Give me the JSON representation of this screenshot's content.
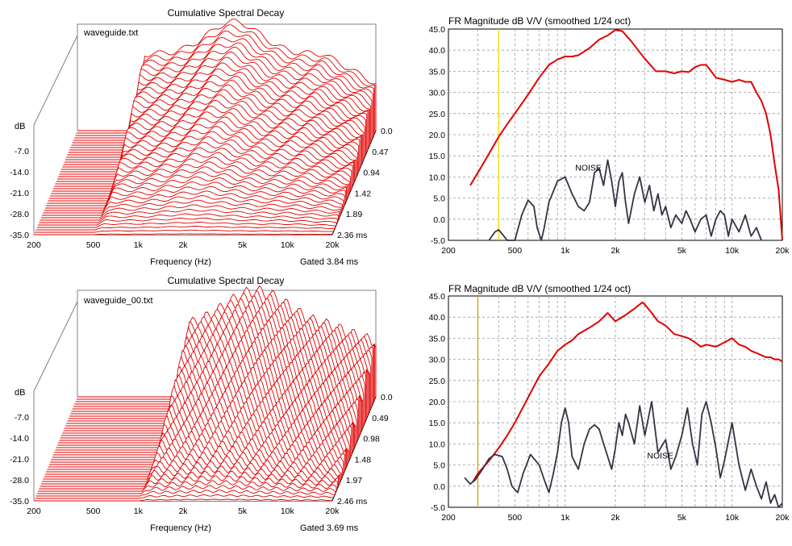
{
  "csd_top": {
    "title": "Cumulative Spectral Decay",
    "file_label": "waveguide.txt",
    "ylabel": "dB",
    "xlabel": "Frequency (Hz)",
    "gated": "Gated 3.84 ms",
    "y_ticks": [
      "-7.0",
      "-14.0",
      "-21.0",
      "-28.0",
      "-35.0"
    ],
    "x_ticks": [
      "200",
      "500",
      "1k",
      "2k",
      "5k",
      "10k",
      "20k"
    ],
    "x_tick_values": [
      200,
      500,
      1000,
      2000,
      5000,
      10000,
      20000
    ],
    "time_ticks": [
      "0.0",
      "0.47",
      "0.94",
      "1.42",
      "1.89",
      "2.36 ms"
    ],
    "color": "#e00000",
    "slices": 44,
    "start_hz": 500
  },
  "csd_bottom": {
    "title": "Cumulative Spectral Decay",
    "file_label": "waveguide_00.txt",
    "ylabel": "dB",
    "xlabel": "Frequency (Hz)",
    "gated": "Gated 3.69 ms",
    "y_ticks": [
      "-7.0",
      "-14.0",
      "-21.0",
      "-28.0",
      "-35.0"
    ],
    "x_ticks": [
      "200",
      "500",
      "1k",
      "2k",
      "5k",
      "10k",
      "20k"
    ],
    "x_tick_values": [
      200,
      500,
      1000,
      2000,
      5000,
      10000,
      20000
    ],
    "time_ticks": [
      "0.0",
      "0.49",
      "0.98",
      "1.48",
      "1.97",
      "2.46 ms"
    ],
    "color": "#e00000",
    "slices": 44,
    "start_hz": 1000
  },
  "chart_data": [
    {
      "type": "line",
      "title": "FR Magnitude dB V/V (smoothed 1/24 oct)",
      "xscale": "log",
      "xlim": [
        200,
        20000
      ],
      "ylim": [
        -5,
        45
      ],
      "x_ticks": [
        "200",
        "500",
        "1k",
        "2k",
        "5k",
        "10k",
        "20k"
      ],
      "x_tick_values": [
        200,
        500,
        1000,
        2000,
        5000,
        10000,
        20000
      ],
      "y_ticks": [
        "45.0",
        "40.0",
        "35.0",
        "30.0",
        "25.0",
        "20.0",
        "15.0",
        "10.0",
        "5.0",
        "0.0",
        "-5.0"
      ],
      "marker_hz": 400,
      "marker_color": "#ffd700",
      "annotation": "NOISE",
      "series": [
        {
          "color": "#e00000",
          "x": [
            270,
            300,
            350,
            400,
            450,
            500,
            600,
            700,
            800,
            900,
            1000,
            1100,
            1200,
            1400,
            1600,
            1800,
            2000,
            2200,
            2500,
            2800,
            3000,
            3500,
            4000,
            4500,
            5000,
            5500,
            6000,
            6500,
            7000,
            7500,
            8000,
            9000,
            10000,
            11000,
            12000,
            13000,
            14000,
            15000,
            16000,
            17000,
            18000,
            19000,
            20000
          ],
          "y": [
            8,
            11,
            15.5,
            19.5,
            22.5,
            25,
            29.5,
            33.5,
            36.5,
            37.8,
            38.5,
            38.5,
            38.8,
            40.5,
            42.5,
            43.5,
            44.8,
            44.5,
            42,
            39.5,
            38,
            35,
            35,
            34.5,
            35,
            34.8,
            36,
            36.5,
            36.5,
            35,
            33.5,
            33,
            32.5,
            33,
            32.5,
            32.5,
            30,
            28,
            25,
            20,
            13,
            7,
            -5
          ]
        },
        {
          "color": "#333344",
          "x": [
            350,
            380,
            400,
            430,
            450,
            500,
            550,
            600,
            650,
            680,
            720,
            750,
            800,
            900,
            1000,
            1100,
            1200,
            1300,
            1400,
            1500,
            1600,
            1700,
            1800,
            1900,
            2000,
            2100,
            2200,
            2300,
            2400,
            2600,
            2800,
            3000,
            3200,
            3400,
            3600,
            3800,
            4000,
            4300,
            4600,
            5000,
            5300,
            5600,
            6000,
            6500,
            7000,
            7500,
            8000,
            8500,
            9000,
            9500,
            10000,
            11000,
            12000,
            13000,
            14000,
            15000
          ],
          "y": [
            -5,
            -3,
            -2.5,
            -4,
            -5,
            -5,
            1,
            4.5,
            3,
            -2,
            -5,
            -2,
            4,
            9,
            10,
            6,
            3,
            2,
            4,
            11,
            12,
            8,
            14,
            9,
            3,
            9,
            11,
            4,
            -1,
            6,
            10,
            4,
            8,
            2,
            6,
            1,
            3,
            -2,
            1,
            -1,
            2,
            0,
            -3,
            0,
            1,
            -4,
            0,
            2,
            1,
            -4,
            0,
            -3,
            1,
            -4,
            -2,
            -5
          ]
        }
      ]
    },
    {
      "type": "line",
      "title": "FR Magnitude dB V/V (smoothed 1/24 oct)",
      "xscale": "log",
      "xlim": [
        200,
        20000
      ],
      "ylim": [
        -5,
        45
      ],
      "x_ticks": [
        "200",
        "500",
        "1k",
        "2k",
        "5k",
        "10k",
        "20k"
      ],
      "x_tick_values": [
        200,
        500,
        1000,
        2000,
        5000,
        10000,
        20000
      ],
      "y_ticks": [
        "45.0",
        "40.0",
        "35.0",
        "30.0",
        "25.0",
        "20.0",
        "15.0",
        "10.0",
        "5.0",
        "0.0",
        "-5.0"
      ],
      "marker_hz": 300,
      "marker_color": "#d4a000",
      "annotation": "NOISE",
      "series": [
        {
          "color": "#e00000",
          "x": [
            280,
            300,
            350,
            400,
            450,
            500,
            600,
            700,
            800,
            900,
            1000,
            1100,
            1200,
            1400,
            1600,
            1800,
            2000,
            2300,
            2600,
            2900,
            3000,
            3300,
            3600,
            4000,
            4500,
            5000,
            5500,
            6000,
            6500,
            7000,
            8000,
            9000,
            10000,
            11000,
            12000,
            13000,
            14000,
            15000,
            16000,
            17000,
            18000,
            19000,
            20000
          ],
          "y": [
            1,
            3,
            6,
            9,
            12,
            15,
            21,
            26,
            29,
            32,
            33.5,
            34.5,
            36,
            37.5,
            39,
            41,
            39,
            40.5,
            42,
            43.5,
            43,
            41,
            39,
            38,
            36,
            35.5,
            35,
            34,
            33,
            33.5,
            33,
            34,
            35,
            33.5,
            33,
            32,
            31.5,
            31,
            30.5,
            30.5,
            30,
            30,
            29.5
          ]
        },
        {
          "color": "#333344",
          "x": [
            250,
            270,
            290,
            320,
            350,
            380,
            420,
            450,
            480,
            520,
            560,
            620,
            700,
            750,
            800,
            850,
            900,
            950,
            1000,
            1050,
            1100,
            1200,
            1300,
            1400,
            1500,
            1600,
            1700,
            1800,
            1900,
            2000,
            2100,
            2200,
            2300,
            2400,
            2600,
            2800,
            3000,
            3300,
            3600,
            4000,
            4300,
            4600,
            5000,
            5400,
            5800,
            6200,
            6600,
            7000,
            7500,
            8000,
            8500,
            9000,
            10000,
            11000,
            12000,
            13000,
            14000,
            15000,
            16000,
            17000,
            18000,
            19000,
            20000
          ],
          "y": [
            2,
            0.5,
            1.5,
            4,
            6.5,
            7.5,
            7,
            4,
            0,
            -1.5,
            3,
            7.5,
            5,
            1.5,
            -1.5,
            3,
            8,
            15,
            18.5,
            15,
            7,
            4,
            10,
            13.5,
            14.5,
            13.5,
            10,
            7,
            4,
            9,
            15,
            12,
            17,
            15,
            10,
            19,
            12,
            20,
            8,
            11,
            4,
            7,
            12,
            18.5,
            10,
            5,
            17,
            20,
            15,
            9,
            2,
            6,
            15,
            5,
            -1,
            4,
            0,
            -3,
            1,
            -4,
            -2,
            -5,
            -4
          ]
        }
      ]
    }
  ]
}
